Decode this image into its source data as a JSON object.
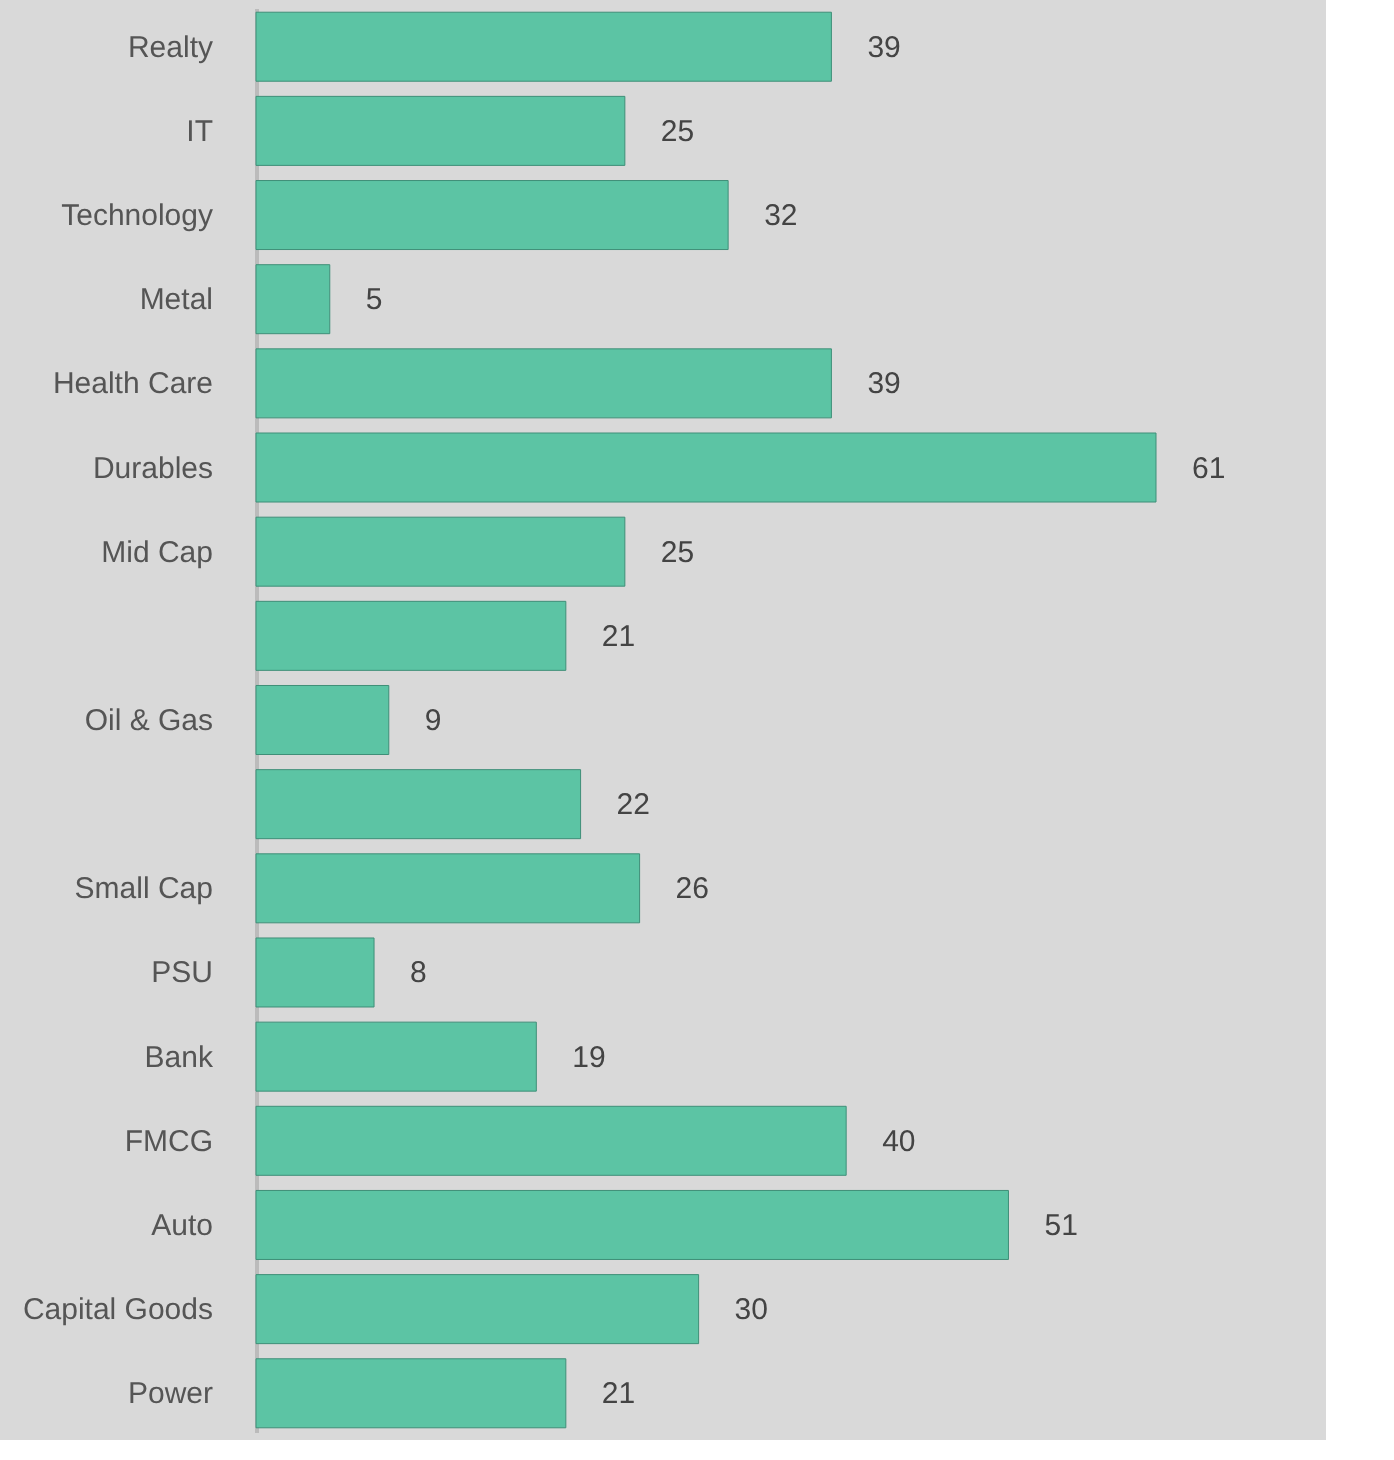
{
  "chart_data": {
    "type": "bar",
    "orientation": "horizontal",
    "data_labels": true,
    "categories": [
      "Realty",
      "IT",
      "Technology",
      "Metal",
      "Health Care",
      "Durables",
      "Mid Cap",
      null,
      "Oil & Gas",
      null,
      "Small Cap",
      "PSU",
      "Bank",
      "FMCG",
      "Auto",
      "Capital Goods",
      "Power"
    ],
    "values": [
      39,
      25,
      32,
      5,
      39,
      61,
      25,
      21,
      9,
      22,
      26,
      8,
      19,
      40,
      51,
      30,
      21
    ],
    "color": "#5cc4a4"
  }
}
